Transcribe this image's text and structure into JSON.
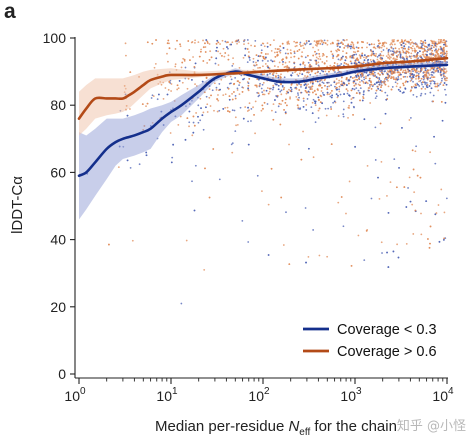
{
  "panel_letter": "a",
  "watermark": "知乎 @小怪",
  "chart_data": {
    "type": "scatter",
    "xscale": "log",
    "xlim": [
      1,
      10000
    ],
    "ylim": [
      0,
      100
    ],
    "xlabel_pre": "Median per-residue ",
    "xlabel_sym": "N",
    "xlabel_sub": "eff",
    "xlabel_post": " for the chain",
    "ylabel": "lDDT-Cα",
    "xticks": [
      {
        "value": 1,
        "base": "10",
        "exp": "0"
      },
      {
        "value": 10,
        "base": "10",
        "exp": "1"
      },
      {
        "value": 100,
        "base": "10",
        "exp": "2"
      },
      {
        "value": 1000,
        "base": "10",
        "exp": "3"
      },
      {
        "value": 10000,
        "base": "10",
        "exp": "4"
      }
    ],
    "yticks": [
      0,
      20,
      40,
      60,
      80,
      100
    ],
    "legend_position": "bottom-right",
    "series": [
      {
        "name": "Coverage < 0.3",
        "color": "#142f8c",
        "band_color": "#9aa6d8",
        "point_color": "#4a5fb3",
        "x": [
          1,
          1.2,
          1.5,
          2,
          2.5,
          3,
          4,
          5,
          6,
          8,
          10,
          13,
          20,
          30,
          50,
          70,
          100,
          150,
          250,
          400,
          700,
          1000,
          2000,
          4000,
          10000
        ],
        "y": [
          59,
          60,
          63,
          67,
          69,
          70,
          71,
          72,
          73,
          76,
          78,
          80,
          84,
          88,
          90,
          89,
          88,
          87,
          87,
          88,
          89,
          90,
          91,
          91.5,
          92
        ],
        "lower": [
          46,
          49,
          53,
          58,
          62,
          64,
          65,
          66,
          67,
          72,
          75,
          77,
          82,
          87,
          89.5,
          88.5,
          87.5,
          86.5,
          86.5,
          87.5,
          88.5,
          89.5,
          90.5,
          91,
          91.5
        ],
        "upper": [
          72,
          71,
          73,
          76,
          76,
          76,
          77,
          78,
          79,
          80,
          81,
          83,
          86,
          89,
          91,
          90,
          89,
          88,
          88,
          89,
          90,
          91,
          92,
          92.5,
          93
        ]
      },
      {
        "name": "Coverage > 0.6",
        "color": "#b34a17",
        "band_color": "#f0c6ae",
        "point_color": "#e08a55",
        "x": [
          1,
          1.2,
          1.5,
          2,
          2.5,
          3,
          3.5,
          4,
          5,
          6,
          8,
          10,
          20,
          50,
          100,
          200,
          500,
          1000,
          2000,
          4000,
          10000
        ],
        "y": [
          76,
          79,
          82,
          82,
          82,
          82,
          83,
          84,
          86,
          87.5,
          88.5,
          89,
          89,
          89.5,
          90,
          90.5,
          91,
          91.5,
          92.5,
          93,
          94
        ],
        "lower": [
          71,
          73,
          76,
          77,
          77.5,
          78,
          79,
          80.5,
          83,
          85,
          86.5,
          87.5,
          88.3,
          89,
          89.6,
          90.2,
          90.7,
          91.2,
          92.2,
          92.7,
          93.6
        ],
        "upper": [
          84,
          86,
          88,
          88,
          88,
          88,
          88.5,
          89,
          90,
          90.5,
          90.8,
          91,
          90,
          90.5,
          90.5,
          91,
          91.3,
          91.8,
          92.8,
          93.3,
          94.4
        ]
      }
    ]
  }
}
